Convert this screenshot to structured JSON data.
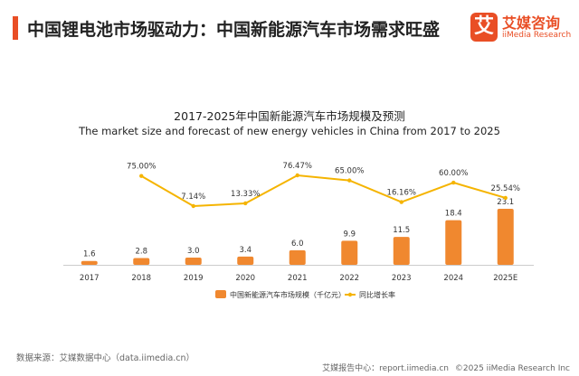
{
  "header": {
    "title": "中国锂电池市场驱动力：中国新能源汽车市场需求旺盛",
    "logo_mark": "艾",
    "logo_cn": "艾媒咨询",
    "logo_en": "iiMedia Research"
  },
  "colors": {
    "accent": "#e94e25",
    "bar": "#f0882f",
    "line": "#f5b400"
  },
  "chart_data": {
    "type": "bar+line",
    "title": "2017-2025年中国新能源汽车市场规模及预测",
    "subtitle": "The market size and forecast of new energy vehicles in China from 2017 to 2025",
    "categories": [
      "2017",
      "2018",
      "2019",
      "2020",
      "2021",
      "2022",
      "2023",
      "2024",
      "2025E"
    ],
    "series": [
      {
        "name": "中国新能源汽车市场规模（千亿元）",
        "type": "bar",
        "values": [
          1.6,
          2.8,
          3.0,
          3.4,
          6.0,
          9.9,
          11.5,
          18.4,
          23.1
        ],
        "labels": [
          "1.6",
          "2.8",
          "3.0",
          "3.4",
          "6.0",
          "9.9",
          "11.5",
          "18.4",
          "23.1"
        ]
      },
      {
        "name": "同比增长率",
        "type": "line",
        "values": [
          null,
          75.0,
          7.14,
          13.33,
          76.47,
          65.0,
          16.16,
          60.0,
          25.54
        ],
        "labels": [
          "",
          "75.00%",
          "7.14%",
          "13.33%",
          "76.47%",
          "65.00%",
          "16.16%",
          "60.00%",
          "25.54%"
        ]
      }
    ],
    "legend_position": "bottom-center",
    "grid": false
  },
  "source": "数据来源：艾媒数据中心（data.iimedia.cn）",
  "footer": {
    "center": "艾媒报告中心：report.iimedia.cn",
    "copyright": "©2025  iiMedia Research  Inc"
  }
}
